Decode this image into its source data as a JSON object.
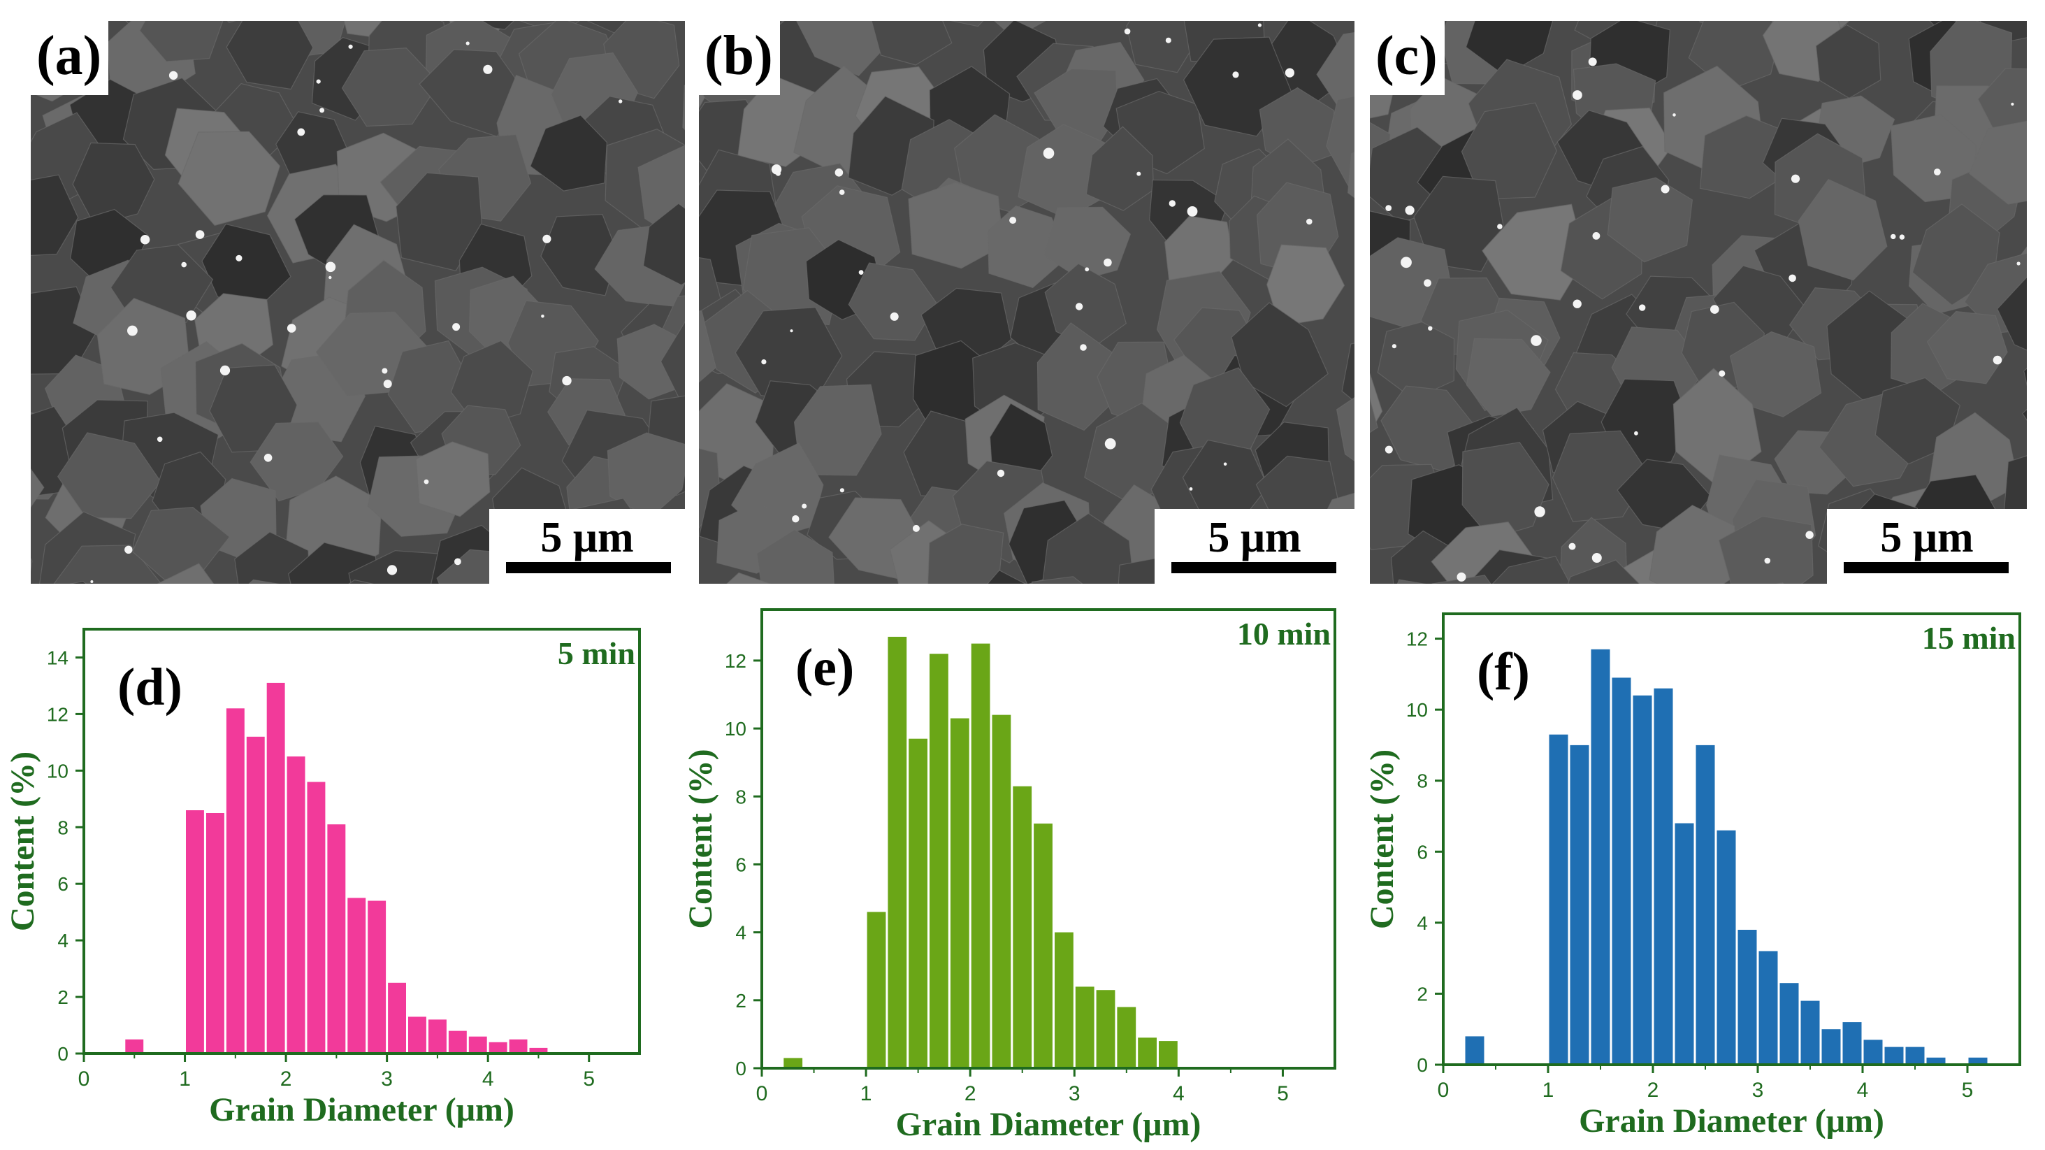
{
  "figure": {
    "sem_panels": [
      {
        "label": "(a)",
        "scale_bar": "5 μm"
      },
      {
        "label": "(b)",
        "scale_bar": "5 μm"
      },
      {
        "label": "(c)",
        "scale_bar": "5 μm"
      }
    ]
  },
  "chart_data": [
    {
      "type": "bar",
      "panel_label": "(d)",
      "annotation": "5 min",
      "color": "#f23a9a",
      "axis_color": "#1f6b1f",
      "xlabel": "Grain Diameter (μm)",
      "ylabel": "Content (%)",
      "xlim": [
        0,
        5.5
      ],
      "ylim": [
        0,
        15
      ],
      "xticks": [
        0,
        1,
        2,
        3,
        4,
        5
      ],
      "yticks": [
        0,
        2,
        4,
        6,
        8,
        10,
        12,
        14
      ],
      "bin_width": 0.2,
      "bins": [
        {
          "x": 0.5,
          "y": 0.5
        },
        {
          "x": 1.1,
          "y": 8.6
        },
        {
          "x": 1.3,
          "y": 8.5
        },
        {
          "x": 1.5,
          "y": 12.2
        },
        {
          "x": 1.7,
          "y": 11.2
        },
        {
          "x": 1.9,
          "y": 13.1
        },
        {
          "x": 2.1,
          "y": 10.5
        },
        {
          "x": 2.3,
          "y": 9.6
        },
        {
          "x": 2.5,
          "y": 8.1
        },
        {
          "x": 2.7,
          "y": 5.5
        },
        {
          "x": 2.9,
          "y": 5.4
        },
        {
          "x": 3.1,
          "y": 2.5
        },
        {
          "x": 3.3,
          "y": 1.3
        },
        {
          "x": 3.5,
          "y": 1.2
        },
        {
          "x": 3.7,
          "y": 0.8
        },
        {
          "x": 3.9,
          "y": 0.6
        },
        {
          "x": 4.1,
          "y": 0.4
        },
        {
          "x": 4.3,
          "y": 0.5
        },
        {
          "x": 4.5,
          "y": 0.2
        }
      ]
    },
    {
      "type": "bar",
      "panel_label": "(e)",
      "annotation": "10 min",
      "color": "#6aa617",
      "axis_color": "#1f6b1f",
      "xlabel": "Grain Diameter (μm)",
      "ylabel": "Content (%)",
      "xlim": [
        0,
        5.5
      ],
      "ylim": [
        0,
        13.5
      ],
      "xticks": [
        0,
        1,
        2,
        3,
        4,
        5
      ],
      "yticks": [
        0,
        2,
        4,
        6,
        8,
        10,
        12
      ],
      "bin_width": 0.2,
      "bins": [
        {
          "x": 0.3,
          "y": 0.3
        },
        {
          "x": 1.1,
          "y": 4.6
        },
        {
          "x": 1.3,
          "y": 12.7
        },
        {
          "x": 1.5,
          "y": 9.7
        },
        {
          "x": 1.7,
          "y": 12.2
        },
        {
          "x": 1.9,
          "y": 10.3
        },
        {
          "x": 2.1,
          "y": 12.5
        },
        {
          "x": 2.3,
          "y": 10.4
        },
        {
          "x": 2.5,
          "y": 8.3
        },
        {
          "x": 2.7,
          "y": 7.2
        },
        {
          "x": 2.9,
          "y": 4.0
        },
        {
          "x": 3.1,
          "y": 2.4
        },
        {
          "x": 3.3,
          "y": 2.3
        },
        {
          "x": 3.5,
          "y": 1.8
        },
        {
          "x": 3.7,
          "y": 0.9
        },
        {
          "x": 3.9,
          "y": 0.8
        }
      ]
    },
    {
      "type": "bar",
      "panel_label": "(f)",
      "annotation": "15 min",
      "color": "#1f6fb3",
      "axis_color": "#1f6b1f",
      "xlabel": "Grain Diameter (μm)",
      "ylabel": "Content (%)",
      "xlim": [
        0,
        5.5
      ],
      "ylim": [
        0,
        12.7
      ],
      "xticks": [
        0,
        1,
        2,
        3,
        4,
        5
      ],
      "yticks": [
        0,
        2,
        4,
        6,
        8,
        10,
        12
      ],
      "bin_width": 0.2,
      "bins": [
        {
          "x": 0.3,
          "y": 0.8
        },
        {
          "x": 1.1,
          "y": 9.3
        },
        {
          "x": 1.3,
          "y": 9.0
        },
        {
          "x": 1.5,
          "y": 11.7
        },
        {
          "x": 1.7,
          "y": 10.9
        },
        {
          "x": 1.9,
          "y": 10.4
        },
        {
          "x": 2.1,
          "y": 10.6
        },
        {
          "x": 2.3,
          "y": 6.8
        },
        {
          "x": 2.5,
          "y": 9.0
        },
        {
          "x": 2.7,
          "y": 6.6
        },
        {
          "x": 2.9,
          "y": 3.8
        },
        {
          "x": 3.1,
          "y": 3.2
        },
        {
          "x": 3.3,
          "y": 2.3
        },
        {
          "x": 3.5,
          "y": 1.8
        },
        {
          "x": 3.7,
          "y": 1.0
        },
        {
          "x": 3.9,
          "y": 1.2
        },
        {
          "x": 4.1,
          "y": 0.7
        },
        {
          "x": 4.3,
          "y": 0.5
        },
        {
          "x": 4.5,
          "y": 0.5
        },
        {
          "x": 4.7,
          "y": 0.2
        },
        {
          "x": 5.1,
          "y": 0.2
        }
      ]
    }
  ]
}
